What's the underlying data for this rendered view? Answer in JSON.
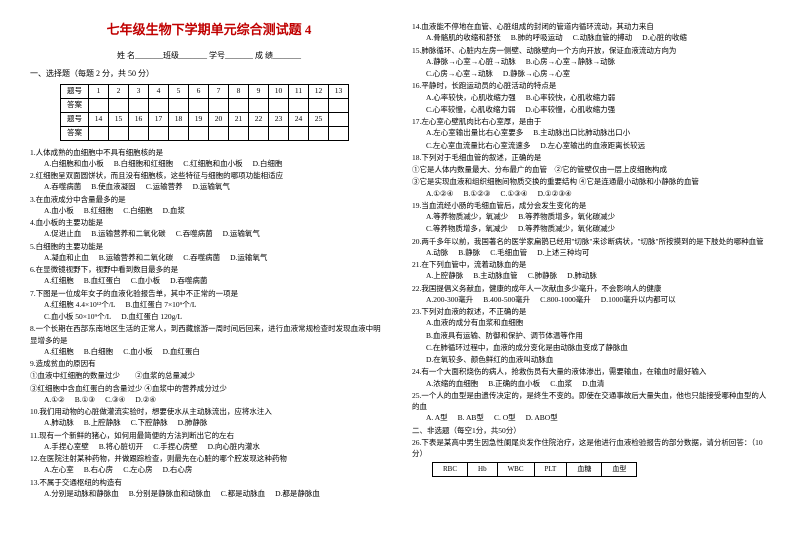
{
  "title": "七年级生物下学期单元综合测试题 4",
  "header_line": "姓 名_______班级_______ 学号_______ 成 绩_______",
  "section1": "一、选择题（每题 2 分，共 50 分）",
  "grid": {
    "row_label1": "题号",
    "row_label2": "答案",
    "nums1": [
      "1",
      "2",
      "3",
      "4",
      "5",
      "6",
      "7",
      "8",
      "9",
      "10",
      "11",
      "12",
      "13"
    ],
    "nums2": [
      "14",
      "15",
      "16",
      "17",
      "18",
      "19",
      "20",
      "21",
      "22",
      "23",
      "24",
      "25",
      ""
    ]
  },
  "left_questions": [
    {
      "n": "1.",
      "t": "人体成熟的血细胞中不具有细胞核的是",
      "o": [
        "A.白细胞和血小板",
        "B.白细胞和红细胞",
        "C.红细胞和血小板",
        "D.白细胞"
      ]
    },
    {
      "n": "2.",
      "t": "红细胞呈双面圆饼状，而且没有细胞核，这些特征与细胞的哪项功能相适应",
      "o": [
        "A.吞噬病菌",
        "B.使血液凝固",
        "C.运输营养",
        "D.运输氧气"
      ]
    },
    {
      "n": "3.",
      "t": "在血液成分中含量最多的是",
      "o": [
        "A.血小板",
        "B.红细胞",
        "C.白细胞",
        "D.血浆"
      ]
    },
    {
      "n": "4.",
      "t": "血小板的主要功能是",
      "o": [
        "A.促进止血",
        "B.运输营养和二氧化碳",
        "C.吞噬病菌",
        "D.运输氧气"
      ]
    },
    {
      "n": "5.",
      "t": "白细胞的主要功能是",
      "o": [
        "A.凝血和止血",
        "B.运输营养和二氧化碳",
        "C.吞噬病菌",
        "D.运输氧气"
      ]
    },
    {
      "n": "6.",
      "t": "在显微镜视野下，视野中看到数目最多的是",
      "o": [
        "A.红细胞",
        "B.血红蛋白",
        "C.血小板",
        "D.吞噬病菌"
      ]
    },
    {
      "n": "7.",
      "t": "下图是一位成年女子的血液化验报告单，其中不正常的一项是",
      "o": [
        "A.红细胞 4.4×10¹²个/L",
        "B.血红蛋白 7×10⁹个/L",
        "",
        " "
      ]
    },
    {
      "n": "",
      "t": "",
      "o": [
        "C.血小板 50×10⁹个/L",
        "D.血红蛋白 120g/L"
      ]
    },
    {
      "n": "8.",
      "t": "一个长期在西部东南地区生活的正常人，到西藏旅游一周时间后回来，进行血液常规检查时发现血液中明显增多的是",
      "o": [
        "A.红细胞",
        "B.白细胞",
        "C.血小板",
        "D.血红蛋白"
      ]
    },
    {
      "n": "9.",
      "t": "造成贫血的原因有",
      "o": []
    },
    {
      "n": "",
      "t": "①血液中红细胞的数量过少　　②血浆的总量减少",
      "o": []
    },
    {
      "n": "",
      "t": "③红细胞中含血红蛋白的含量过少 ④血浆中的营养成分过少",
      "o": [
        "A.①②",
        "B.①③",
        "C.③④",
        "D.②④"
      ]
    },
    {
      "n": "10.",
      "t": "我们用动物的心脏做灌流实验时，想要使水从主动脉流出，应将水注入",
      "o": [
        "A.肺动脉",
        "B.上腔静脉",
        "C.下腔静脉",
        "D.肺静脉"
      ]
    },
    {
      "n": "11.",
      "t": "现有一个新鲜的猪心，如何用最简便的方法判断出它的左右",
      "o": [
        "A.手捏心室壁",
        "B.将心脏切开",
        "C.手捏心房壁",
        "D.向心脏内灌水"
      ]
    },
    {
      "n": "12.",
      "t": "在医院注射某种药物，并做跟踪检查，则最先在心脏的哪个腔发现这种药物",
      "o": [
        "A.左心室",
        "B.右心房",
        "C.左心房",
        "D.右心房"
      ]
    },
    {
      "n": "13.",
      "t": "不属于交通枢纽的构造有",
      "o": [
        "A.分别是动脉和静脉血",
        "B.分别是静脉血和动脉血",
        "C.都是动脉血",
        "D.都是静脉血"
      ]
    }
  ],
  "right_questions": [
    {
      "n": "14.",
      "t": "血液能不停地在血管、心脏组成的封闭的管道内循环流动，其动力来自",
      "o": [
        "A.骨骼肌的收缩和舒张",
        "B.肺的呼吸运动",
        "C.动脉血管的搏动",
        "D.心脏的收缩"
      ]
    },
    {
      "n": "15.",
      "t": "肺脉循环、心脏内左房一侧壁、动脉壁向一个方向开放，保证血液流动方向为",
      "o": [
        "A.静脉→心室→心脏→动脉",
        "B.心房→心室→静脉→动脉"
      ]
    },
    {
      "n": "",
      "t": "",
      "o": [
        "C.心房→心室→动脉",
        "D.静脉→心房→心室"
      ]
    },
    {
      "n": "16.",
      "t": "平静时，长跑运动员的心脏活动的特点是",
      "o": [
        "A.心率较快，心肌收缩力强",
        "B.心率较快，心肌收缩力弱"
      ]
    },
    {
      "n": "",
      "t": "",
      "o": [
        "C.心率较慢，心肌收缩力弱",
        "D.心率较慢，心肌收缩力强"
      ]
    },
    {
      "n": "17.",
      "t": "左心室心壁肌肉比右心室厚，是由于",
      "o": [
        "A.左心室输出量比右心室要多",
        "B.主动脉出口比肺动脉出口小"
      ]
    },
    {
      "n": "",
      "t": "",
      "o": [
        "C.左心室血流量比右心室流速多",
        "D.左心室输出的血液距离长较远"
      ]
    },
    {
      "n": "18.",
      "t": "下列对于毛细血管的叙述，正确的是",
      "o": []
    },
    {
      "n": "",
      "t": "①它是人体内数量最大、分布最广的血管　②它的管壁仅由一层上皮细胞构成",
      "o": []
    },
    {
      "n": "",
      "t": "③它是实现血液和组织细胞间物质交换的重要结构 ④它是连通最小动脉和小静脉的血管",
      "o": [
        "A.①②④",
        "B.①②③",
        "C.①③④",
        "D.①②③④"
      ]
    },
    {
      "n": "19.",
      "t": "当血流经小肠的毛细血管后，成分会发生变化的是",
      "o": [
        "A.等养物质减少，氧减少",
        "B.等养物质增多，氧化碳减少"
      ]
    },
    {
      "n": "",
      "t": "",
      "o": [
        "C.等养物质增多，氧减少",
        "D.等养物质减少，氧化碳减少"
      ]
    },
    {
      "n": "20.",
      "t": "两千多年以前，我国著名的医学家扁鹊已经用\"切脉\"来诊断病状，\"切脉\"所按摸到的是下肢处的哪种血管",
      "o": [
        "A.动脉",
        "B.静脉",
        "C.毛细血管",
        "D.上述三种均可"
      ]
    },
    {
      "n": "21.",
      "t": "在下列血管中，流着动脉血的是",
      "o": [
        "A.上腔静脉",
        "B.主动脉血管",
        "C.肺静脉",
        "D.肺动脉"
      ]
    },
    {
      "n": "22.",
      "t": "我国提倡义务献血，健康的成年人一次献血多少毫升，不会影响人的健康",
      "o": [
        "A.200-300毫升",
        "B.400-500毫升",
        "C.800-1000毫升",
        "D.1000毫升以内都可以"
      ]
    },
    {
      "n": "23.",
      "t": "下列对血液的叙述，不正确的是",
      "o": [
        "A.血液的成分有血浆和血细胞"
      ]
    },
    {
      "n": "",
      "t": "",
      "o": [
        "B.血液具有运输、防御和保护、调节体温等作用"
      ]
    },
    {
      "n": "",
      "t": "",
      "o": [
        "C.在肺循环过程中，血液的成分变化是由动脉血变成了静脉血"
      ]
    },
    {
      "n": "",
      "t": "",
      "o": [
        "D.在氧较多、颜色鲜红的血液叫动脉血"
      ]
    },
    {
      "n": "24.",
      "t": "有一个大面积烧伤的病人，抢救伤员有大量的液体渗出，需要输血，在输血时最好输入",
      "o": [
        "A.浓缩的血细胞",
        "B.正确的血小板",
        "C.血浆",
        "D.血清"
      ]
    },
    {
      "n": "25.",
      "t": "一个人的血型是由遗传决定的，是终生不变的。即使在交通事故后大量失血，他也只能接受哪种血型的人的血",
      "o": [
        "A. A型",
        "B. AB型",
        "C. O型",
        "D. ABO型"
      ]
    },
    {
      "n": "",
      "t": "二、非选题（每空1分，共50分）",
      "o": []
    },
    {
      "n": "26.",
      "t": "下表是某高中男生因急性阑尾炎发作住院治疗，这是他进行血液检验报告的部分数据，请分析回答：（10分）",
      "o": []
    }
  ],
  "lab_table": {
    "cols": [
      "RBC",
      "Hb",
      "WBC",
      "PLT",
      "血糖",
      "血型"
    ]
  }
}
